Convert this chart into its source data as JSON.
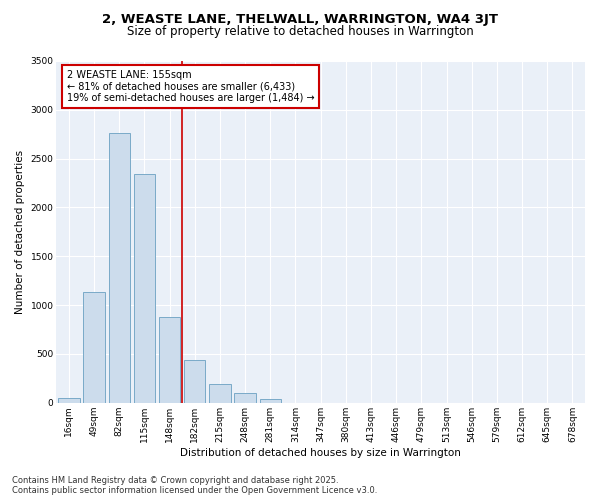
{
  "title": "2, WEASTE LANE, THELWALL, WARRINGTON, WA4 3JT",
  "subtitle": "Size of property relative to detached houses in Warrington",
  "xlabel": "Distribution of detached houses by size in Warrington",
  "ylabel": "Number of detached properties",
  "categories": [
    "16sqm",
    "49sqm",
    "82sqm",
    "115sqm",
    "148sqm",
    "182sqm",
    "215sqm",
    "248sqm",
    "281sqm",
    "314sqm",
    "347sqm",
    "380sqm",
    "413sqm",
    "446sqm",
    "479sqm",
    "513sqm",
    "546sqm",
    "579sqm",
    "612sqm",
    "645sqm",
    "678sqm"
  ],
  "values": [
    50,
    1130,
    2760,
    2340,
    880,
    440,
    195,
    105,
    40,
    0,
    0,
    0,
    0,
    0,
    0,
    0,
    0,
    0,
    0,
    0,
    0
  ],
  "bar_color": "#ccdcec",
  "bar_edge_color": "#7aaac8",
  "background_color": "#eaf0f8",
  "grid_color": "#ffffff",
  "vline_x": 4.5,
  "vline_color": "#cc0000",
  "annotation_text": "2 WEASTE LANE: 155sqm\n← 81% of detached houses are smaller (6,433)\n19% of semi-detached houses are larger (1,484) →",
  "annotation_box_color": "#ffffff",
  "annotation_box_edge": "#cc0000",
  "ylim": [
    0,
    3500
  ],
  "yticks": [
    0,
    500,
    1000,
    1500,
    2000,
    2500,
    3000,
    3500
  ],
  "footer_line1": "Contains HM Land Registry data © Crown copyright and database right 2025.",
  "footer_line2": "Contains public sector information licensed under the Open Government Licence v3.0.",
  "fig_background": "#ffffff",
  "title_fontsize": 9.5,
  "subtitle_fontsize": 8.5,
  "axis_label_fontsize": 7.5,
  "tick_fontsize": 6.5,
  "annotation_fontsize": 7,
  "footer_fontsize": 6
}
